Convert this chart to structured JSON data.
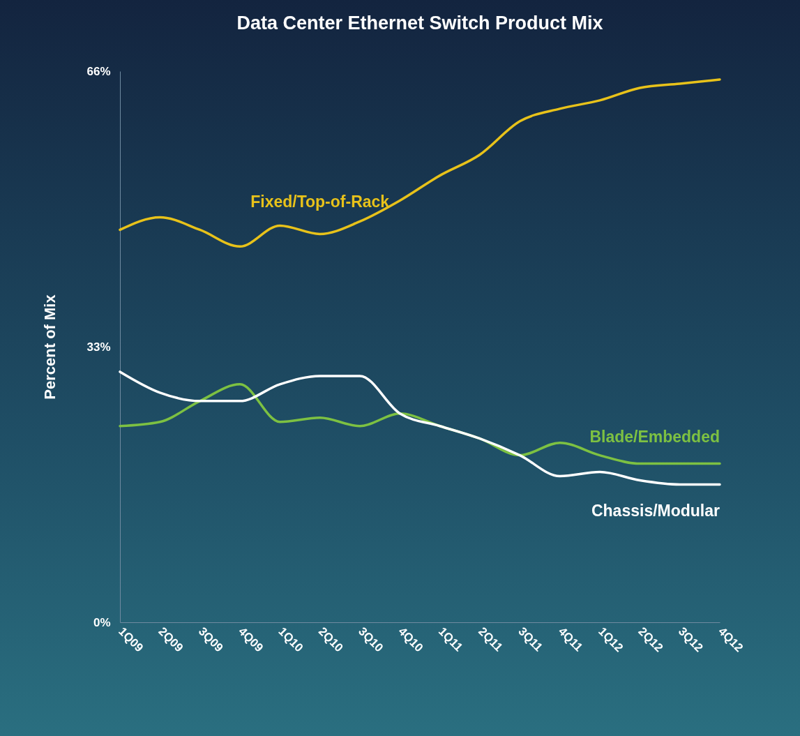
{
  "chart_data": {
    "type": "line",
    "title": "Data Center Ethernet Switch Product Mix",
    "ylabel": "Percent of Mix",
    "categories": [
      "1Q09",
      "2Q09",
      "3Q09",
      "4Q09",
      "1Q10",
      "2Q10",
      "3Q10",
      "4Q10",
      "1Q11",
      "2Q11",
      "3Q11",
      "4Q11",
      "1Q12",
      "2Q12",
      "3Q12",
      "4Q12"
    ],
    "series": [
      {
        "name": "Fixed/Top-of-Rack",
        "color": "#e8c21a",
        "values": [
          47,
          48.5,
          47,
          45,
          47.5,
          46.5,
          48,
          50.5,
          53.5,
          56,
          60,
          61.5,
          62.5,
          64,
          64.5,
          65
        ]
      },
      {
        "name": "Blade/Embedded",
        "color": "#7dc142",
        "values": [
          23.5,
          24,
          26.5,
          28.5,
          24,
          24.5,
          23.5,
          25,
          23.5,
          22,
          20,
          21.5,
          20,
          19,
          19,
          19
        ]
      },
      {
        "name": "Chassis/Modular",
        "color": "#ffffff",
        "values": [
          30,
          27.5,
          26.5,
          26.5,
          28.5,
          29.5,
          29.5,
          25,
          23.5,
          22,
          20,
          17.5,
          18,
          17,
          16.5,
          16.5
        ]
      }
    ],
    "ylim": [
      0,
      66
    ],
    "yticks": [
      {
        "value": 0,
        "label": "0%"
      },
      {
        "value": 33,
        "label": "33%"
      },
      {
        "value": 66,
        "label": "66%"
      }
    ],
    "grid": false,
    "legend": false,
    "marker": "none",
    "line_style": "solid"
  }
}
